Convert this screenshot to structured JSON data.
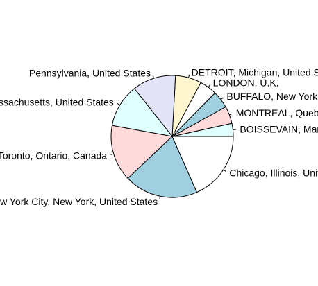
{
  "chart_data": {
    "type": "pie",
    "title": "",
    "start_angle_deg": 0,
    "direction": "counterclockwise",
    "slices": [
      {
        "label": "BOISSEVAIN, Manitoba, Canada",
        "value": 3,
        "color": "#e0ffff"
      },
      {
        "label": "MONTREAL, Quebec, Canada",
        "value": 4,
        "color": "#ffdada"
      },
      {
        "label": "BUFFALO, New York, United States",
        "value": 4,
        "color": "#a0d0e0"
      },
      {
        "label": "LONDON, U.K.",
        "value": 4,
        "color": "#ffffff"
      },
      {
        "label": "DETROIT, Michigan, United States",
        "value": 6,
        "color": "#fff6d0"
      },
      {
        "label": "Pennsylvania, United States",
        "value": 10,
        "color": "#e4e4f8"
      },
      {
        "label": "Massachusetts, United States",
        "value": 10,
        "color": "#e0ffff"
      },
      {
        "label": "Toronto, Ontario, Canada",
        "value": 13,
        "color": "#ffdada"
      },
      {
        "label": "New York City, New York, United States",
        "value": 17,
        "color": "#a0d0e0"
      },
      {
        "label": "Chicago, Illinois, United States",
        "value": 16,
        "color": "#ffffff"
      }
    ]
  }
}
